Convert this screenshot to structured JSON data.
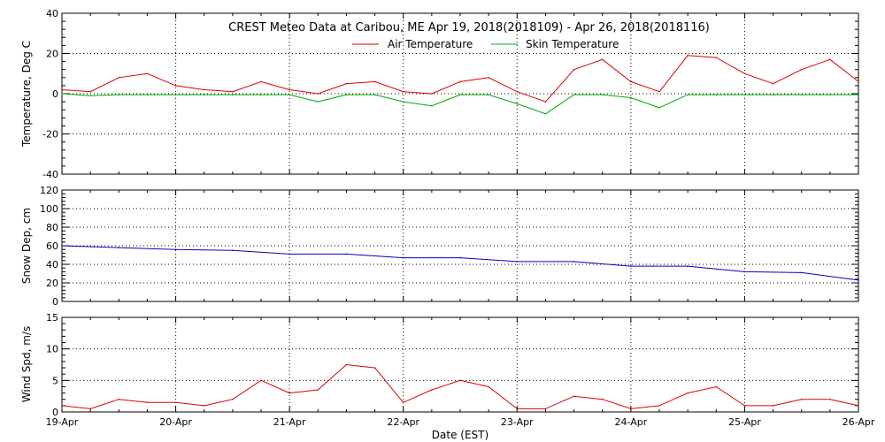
{
  "chart_data": [
    {
      "type": "line",
      "title": "CREST Meteo Data at Caribou, ME   Apr 19, 2018(2018109) - Apr 26, 2018(2018116)",
      "xlabel": "",
      "ylabel": "Temperature, Deg C",
      "ylim": [
        -40,
        40
      ],
      "yticks": [
        "-40",
        "-20",
        "0",
        "20",
        "40"
      ],
      "x": [
        "2018-04-19 00:00",
        "2018-04-19 06:00",
        "2018-04-19 12:00",
        "2018-04-19 18:00",
        "2018-04-20 00:00",
        "2018-04-20 06:00",
        "2018-04-20 12:00",
        "2018-04-20 18:00",
        "2018-04-21 00:00",
        "2018-04-21 06:00",
        "2018-04-21 12:00",
        "2018-04-21 18:00",
        "2018-04-22 00:00",
        "2018-04-22 06:00",
        "2018-04-22 12:00",
        "2018-04-22 18:00",
        "2018-04-23 00:00",
        "2018-04-23 06:00",
        "2018-04-23 12:00",
        "2018-04-23 18:00",
        "2018-04-24 00:00",
        "2018-04-24 06:00",
        "2018-04-24 12:00",
        "2018-04-24 18:00",
        "2018-04-25 00:00",
        "2018-04-25 06:00",
        "2018-04-25 12:00",
        "2018-04-25 18:00",
        "2018-04-26 00:00"
      ],
      "series": [
        {
          "name": "Air Temperature",
          "color": "#dd0000",
          "values": [
            2,
            1,
            8,
            10,
            4,
            2,
            1,
            6,
            2,
            0,
            5,
            6,
            1,
            0,
            6,
            8,
            1,
            -4,
            12,
            17,
            6,
            1,
            19,
            18,
            10,
            5,
            12,
            17,
            6
          ]
        },
        {
          "name": "Skin Temperature",
          "color": "#00aa00",
          "values": [
            0,
            -1,
            -0.5,
            -0.5,
            -0.5,
            -0.5,
            -0.5,
            -0.5,
            -0.5,
            -4,
            -0.5,
            -0.5,
            -4,
            -6,
            -0.5,
            -0.5,
            -5,
            -10,
            -0.5,
            -0.5,
            -2,
            -7,
            -0.5,
            -0.5,
            -0.5,
            -0.5,
            -0.5,
            -0.5,
            -0.5
          ]
        }
      ]
    },
    {
      "type": "line",
      "ylabel": "Snow Dep, cm",
      "ylim": [
        0,
        120
      ],
      "yticks": [
        "0",
        "20",
        "40",
        "60",
        "80",
        "100",
        "120"
      ],
      "x": [
        "2018-04-19 00:00",
        "2018-04-19 12:00",
        "2018-04-20 00:00",
        "2018-04-20 12:00",
        "2018-04-21 00:00",
        "2018-04-21 12:00",
        "2018-04-22 00:00",
        "2018-04-22 12:00",
        "2018-04-23 00:00",
        "2018-04-23 12:00",
        "2018-04-24 00:00",
        "2018-04-24 12:00",
        "2018-04-25 00:00",
        "2018-04-25 12:00",
        "2018-04-26 00:00"
      ],
      "series": [
        {
          "name": "",
          "color": "#0000cc",
          "values": [
            60,
            58,
            56,
            55,
            51,
            51,
            47,
            47,
            43,
            43,
            38,
            38,
            32,
            31,
            23
          ]
        }
      ]
    },
    {
      "type": "line",
      "xlabel": "Date (EST)",
      "ylabel": "Wind Spd, m/s",
      "ylim": [
        0,
        15
      ],
      "yticks": [
        "0",
        "5",
        "10",
        "15"
      ],
      "xticks": [
        "19-Apr",
        "20-Apr",
        "21-Apr",
        "22-Apr",
        "23-Apr",
        "24-Apr",
        "25-Apr",
        "26-Apr"
      ],
      "x": [
        "2018-04-19 00:00",
        "2018-04-19 06:00",
        "2018-04-19 12:00",
        "2018-04-19 18:00",
        "2018-04-20 00:00",
        "2018-04-20 06:00",
        "2018-04-20 12:00",
        "2018-04-20 18:00",
        "2018-04-21 00:00",
        "2018-04-21 06:00",
        "2018-04-21 12:00",
        "2018-04-21 18:00",
        "2018-04-22 00:00",
        "2018-04-22 06:00",
        "2018-04-22 12:00",
        "2018-04-22 18:00",
        "2018-04-23 00:00",
        "2018-04-23 06:00",
        "2018-04-23 12:00",
        "2018-04-23 18:00",
        "2018-04-24 00:00",
        "2018-04-24 06:00",
        "2018-04-24 12:00",
        "2018-04-24 18:00",
        "2018-04-25 00:00",
        "2018-04-25 06:00",
        "2018-04-25 12:00",
        "2018-04-25 18:00",
        "2018-04-26 00:00"
      ],
      "series": [
        {
          "name": "",
          "color": "#dd0000",
          "values": [
            1,
            0.5,
            2,
            1.5,
            1.5,
            1,
            2,
            5,
            3,
            3.5,
            7.5,
            7,
            1.5,
            3.5,
            5,
            4,
            0.5,
            0.5,
            2.5,
            2,
            0.5,
            1,
            3,
            4,
            1,
            1,
            2,
            2,
            1
          ]
        }
      ]
    }
  ]
}
